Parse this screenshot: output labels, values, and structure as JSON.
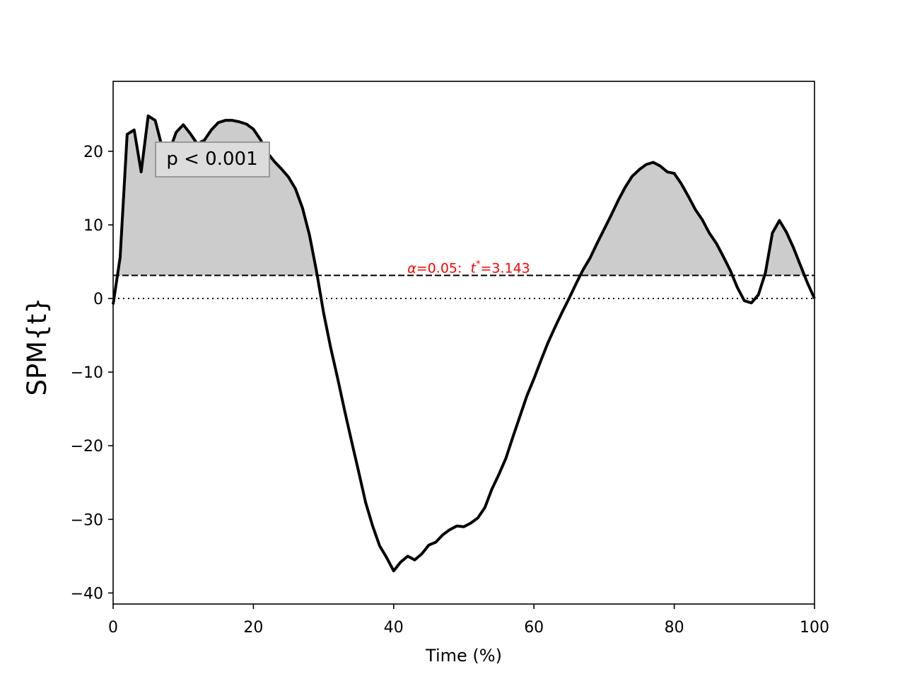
{
  "chart_data": {
    "type": "line",
    "title": "",
    "xlabel": "Time (%)",
    "ylabel": "SPM{t}",
    "xlim": [
      0,
      100
    ],
    "ylim": [
      -41.5,
      29.5
    ],
    "x_ticks": [
      0,
      20,
      40,
      60,
      80,
      100
    ],
    "x_tick_labels": [
      "0",
      "20",
      "40",
      "60",
      "80",
      "100"
    ],
    "y_ticks": [
      20,
      10,
      0,
      -10,
      -20,
      -30,
      -40
    ],
    "y_tick_labels": [
      "20",
      "10",
      "0",
      "−10",
      "−20",
      "−30",
      "−40"
    ],
    "series": [
      {
        "x": [
          0,
          1,
          2,
          3,
          4,
          5,
          6,
          7,
          8,
          9,
          10,
          11,
          12,
          13,
          14,
          15,
          16,
          17,
          18,
          19,
          20,
          21,
          22,
          23,
          24,
          25,
          26,
          27,
          28,
          29,
          30,
          31,
          32,
          33,
          34,
          35,
          36,
          37,
          38,
          39,
          40,
          41,
          42,
          43,
          44,
          45,
          46,
          47,
          48,
          49,
          50,
          51,
          52,
          53,
          54,
          55,
          56,
          57,
          58,
          59,
          60,
          61,
          62,
          63,
          64,
          65,
          66,
          67,
          68,
          69,
          70,
          71,
          72,
          73,
          74,
          75,
          76,
          77,
          78,
          79,
          80,
          81,
          82,
          83,
          84,
          85,
          86,
          87,
          88,
          89,
          90,
          91,
          92,
          93,
          94,
          95,
          96,
          97,
          98,
          99,
          100
        ],
        "y": [
          -0.8,
          5.6,
          22.3,
          22.9,
          17.2,
          24.8,
          24.2,
          20.5,
          20.0,
          22.6,
          23.6,
          22.4,
          21.0,
          21.5,
          22.9,
          23.9,
          24.2,
          24.2,
          24.0,
          23.7,
          23.0,
          21.6,
          19.8,
          18.6,
          17.6,
          16.5,
          14.9,
          12.3,
          8.6,
          3.7,
          -1.9,
          -6.6,
          -10.8,
          -15.2,
          -19.4,
          -23.5,
          -27.7,
          -30.9,
          -33.6,
          -35.2,
          -37.0,
          -35.8,
          -35.0,
          -35.5,
          -34.7,
          -33.5,
          -33.1,
          -32.1,
          -31.4,
          -30.9,
          -31.0,
          -30.5,
          -29.8,
          -28.4,
          -25.9,
          -23.9,
          -21.7,
          -18.8,
          -16.0,
          -13.2,
          -10.9,
          -8.4,
          -6.0,
          -3.9,
          -1.9,
          0.0,
          2.0,
          3.9,
          5.5,
          7.5,
          9.4,
          11.3,
          13.3,
          15.1,
          16.6,
          17.5,
          18.2,
          18.5,
          18.0,
          17.2,
          17.0,
          15.6,
          13.9,
          12.1,
          10.7,
          8.9,
          7.5,
          5.7,
          3.8,
          1.5,
          -0.3,
          -0.6,
          0.5,
          3.5,
          8.9,
          10.6,
          9.0,
          6.9,
          4.5,
          2.1,
          0.0
        ]
      }
    ],
    "threshold": 3.143,
    "threshold_label_alpha": "α",
    "threshold_label_mid": "=0.05:  ",
    "threshold_label_t": "t",
    "threshold_label_star": "*",
    "threshold_label_val": "=3.143",
    "threshold_color": "#ff0000",
    "fill_color": "#cccccc",
    "line_color": "#000000",
    "annotation": "p < 0.001",
    "grid": false
  }
}
